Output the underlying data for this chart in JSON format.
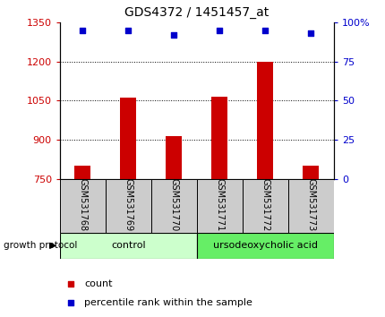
{
  "title": "GDS4372 / 1451457_at",
  "samples": [
    "GSM531768",
    "GSM531769",
    "GSM531770",
    "GSM531771",
    "GSM531772",
    "GSM531773"
  ],
  "counts": [
    800,
    1060,
    915,
    1065,
    1200,
    800
  ],
  "percentile_ranks": [
    95,
    95,
    92,
    95,
    95,
    93
  ],
  "bar_color": "#cc0000",
  "dot_color": "#0000cc",
  "ylim_left": [
    750,
    1350
  ],
  "ylim_right": [
    0,
    100
  ],
  "yticks_left": [
    750,
    900,
    1050,
    1200,
    1350
  ],
  "yticks_right": [
    0,
    25,
    50,
    75,
    100
  ],
  "ytick_labels_right": [
    "0",
    "25",
    "50",
    "75",
    "100%"
  ],
  "groups": [
    {
      "label": "control",
      "indices": [
        0,
        1,
        2
      ],
      "color": "#ccffcc"
    },
    {
      "label": "ursodeoxycholic acid",
      "indices": [
        3,
        4,
        5
      ],
      "color": "#66ee66"
    }
  ],
  "group_label": "growth protocol",
  "legend_count": "count",
  "legend_pct": "percentile rank within the sample",
  "bar_width": 0.35,
  "bar_baseline": 750,
  "grid_linestyle": ":",
  "tick_color_left": "#cc0000",
  "tick_color_right": "#0000cc",
  "sample_area_color": "#cccccc",
  "gridlines_at": [
    900,
    1050,
    1200
  ]
}
